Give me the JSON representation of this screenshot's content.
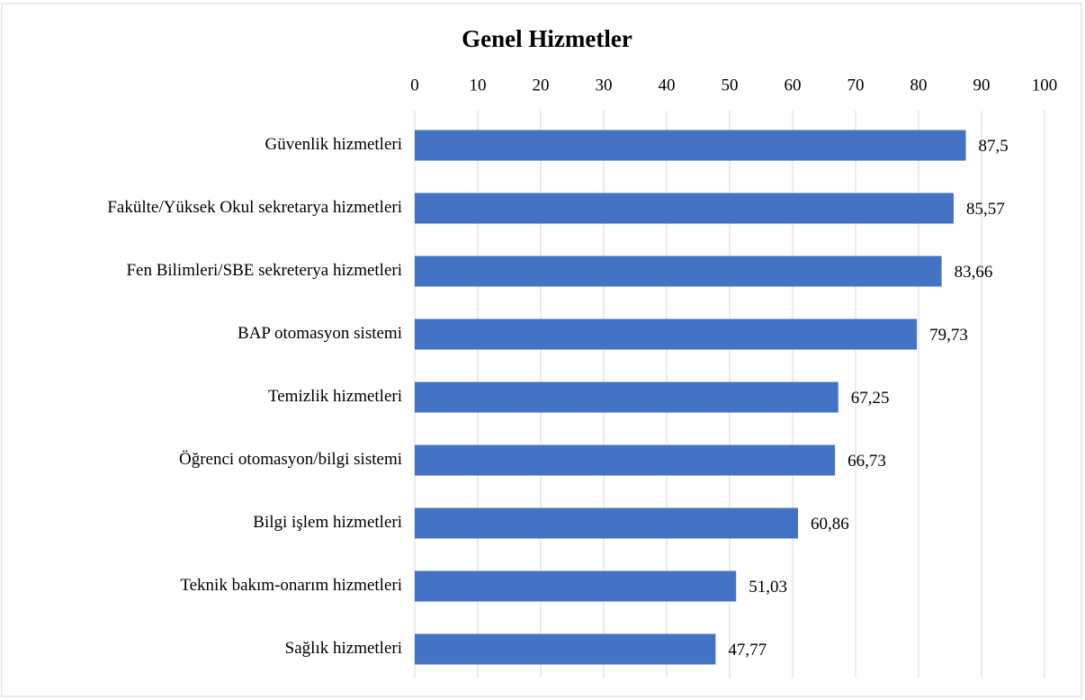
{
  "chart_data": {
    "type": "bar",
    "title": "Genel Hizmetler",
    "categories": [
      "Güvenlik hizmetleri",
      "Fakülte/Yüksek Okul sekretarya hizmetleri",
      "Fen Bilimleri/SBE sekreterya hizmetleri",
      "BAP otomasyon sistemi",
      "Temizlik hizmetleri",
      "Öğrenci otomasyon/bilgi sistemi",
      "Bilgi işlem hizmetleri",
      "Teknik bakım-onarım hizmetleri",
      "Sağlık hizmetleri"
    ],
    "values": [
      87.5,
      85.57,
      83.66,
      79.73,
      67.25,
      66.73,
      60.86,
      51.03,
      47.77
    ],
    "value_labels": [
      "87,5",
      "85,57",
      "83,66",
      "79,73",
      "67,25",
      "66,73",
      "60,86",
      "51,03",
      "47,77"
    ],
    "color": "#4472c4",
    "xlim": [
      0,
      100
    ],
    "xticks": [
      0,
      10,
      20,
      30,
      40,
      50,
      60,
      70,
      80,
      90,
      100
    ],
    "grid": true
  }
}
